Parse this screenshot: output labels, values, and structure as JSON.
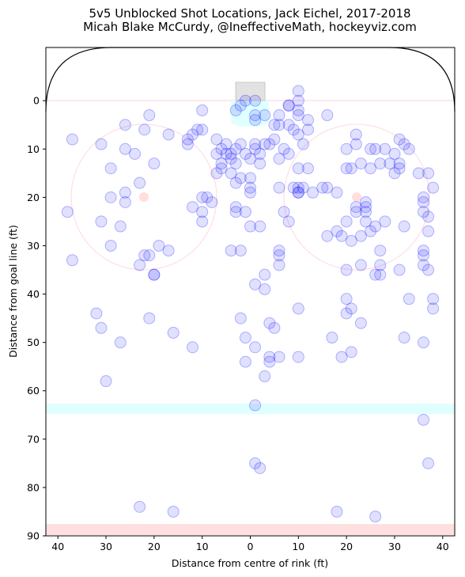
{
  "chart_data": {
    "type": "scatter",
    "title": [
      "5v5 Unblocked Shot Locations, Jack Eichel, 2017-2018",
      "Micah Blake McCurdy, @IneffectiveMath, hockeyviz.com"
    ],
    "xlabel": "Distance from centre of rink (ft)",
    "ylabel": "Distance from goal line (ft)",
    "xlim": [
      42.5,
      -42.5
    ],
    "ylim": [
      90,
      -11
    ],
    "x_ticks": [
      40,
      30,
      20,
      10,
      0,
      10,
      20,
      30,
      40
    ],
    "y_ticks": [
      0,
      10,
      20,
      30,
      40,
      50,
      60,
      70,
      80,
      90
    ],
    "grid": false,
    "marker_color": "#0000ff",
    "marker_alpha": 0.12,
    "points": [
      [
        10,
        2
      ],
      [
        -1,
        0
      ],
      [
        1,
        0
      ],
      [
        2,
        1
      ],
      [
        3,
        2
      ],
      [
        -3,
        3
      ],
      [
        -5,
        5
      ],
      [
        -1,
        3
      ],
      [
        37,
        8
      ],
      [
        31,
        9
      ],
      [
        26,
        5
      ],
      [
        22,
        6
      ],
      [
        21,
        3
      ],
      [
        17,
        7
      ],
      [
        13,
        8
      ],
      [
        12,
        7
      ],
      [
        11,
        6
      ],
      [
        10,
        6
      ],
      [
        13,
        9
      ],
      [
        -1,
        4
      ],
      [
        24,
        11
      ],
      [
        26,
        10
      ],
      [
        29,
        14
      ],
      [
        20,
        13
      ],
      [
        23,
        17
      ],
      [
        26,
        19
      ],
      [
        26,
        21
      ],
      [
        29,
        20
      ],
      [
        27,
        26
      ],
      [
        31,
        25
      ],
      [
        29,
        30
      ],
      [
        38,
        23
      ],
      [
        37,
        33
      ],
      [
        22,
        32
      ],
      [
        21,
        32
      ],
      [
        19,
        30
      ],
      [
        17,
        31
      ],
      [
        20,
        36
      ],
      [
        20,
        36
      ],
      [
        23,
        34
      ],
      [
        7,
        8
      ],
      [
        5,
        9
      ],
      [
        6,
        10
      ],
      [
        5,
        11
      ],
      [
        4,
        11
      ],
      [
        3,
        10
      ],
      [
        2,
        9
      ],
      [
        7,
        11
      ],
      [
        4,
        12
      ],
      [
        3,
        13
      ],
      [
        6,
        13
      ],
      [
        6,
        14
      ],
      [
        7,
        15
      ],
      [
        4,
        15
      ],
      [
        2,
        16
      ],
      [
        3,
        17
      ],
      [
        1,
        11
      ],
      [
        0,
        12
      ],
      [
        -1,
        10
      ],
      [
        -2,
        11
      ],
      [
        -3,
        9
      ],
      [
        -1,
        9
      ],
      [
        -2,
        13
      ],
      [
        0,
        16
      ],
      [
        0,
        18
      ],
      [
        0,
        19
      ],
      [
        12,
        22
      ],
      [
        10,
        23
      ],
      [
        10,
        25
      ],
      [
        9,
        20
      ],
      [
        8,
        21
      ],
      [
        10,
        20
      ],
      [
        3,
        22
      ],
      [
        3,
        23
      ],
      [
        1,
        23
      ],
      [
        4,
        31
      ],
      [
        2,
        31
      ],
      [
        0,
        26
      ],
      [
        -2,
        26
      ],
      [
        -6,
        5
      ],
      [
        -8,
        5
      ],
      [
        -9,
        6
      ],
      [
        -10,
        7
      ],
      [
        -11,
        9
      ],
      [
        -12,
        14
      ],
      [
        -10,
        14
      ],
      [
        -9,
        18
      ],
      [
        -7,
        23
      ],
      [
        -8,
        25
      ],
      [
        -13,
        19
      ],
      [
        -11,
        18
      ],
      [
        -10,
        19
      ],
      [
        -8,
        11
      ],
      [
        -6,
        12
      ],
      [
        -7,
        10
      ],
      [
        -5,
        8
      ],
      [
        -4,
        9
      ],
      [
        -6,
        3
      ],
      [
        -10,
        2
      ],
      [
        -8,
        1
      ],
      [
        -10,
        0
      ],
      [
        -10,
        -2
      ],
      [
        -12,
        4
      ],
      [
        -12,
        6
      ],
      [
        -10,
        3
      ],
      [
        -8,
        1
      ],
      [
        -16,
        3
      ],
      [
        -20,
        10
      ],
      [
        -21,
        14
      ],
      [
        -20,
        14
      ],
      [
        -22,
        7
      ],
      [
        -23,
        13
      ],
      [
        -22,
        23
      ],
      [
        -22,
        22
      ],
      [
        -24,
        22
      ],
      [
        -24,
        21
      ],
      [
        -24,
        23
      ],
      [
        -26,
        26
      ],
      [
        -24,
        25
      ],
      [
        -26,
        10
      ],
      [
        -27,
        13
      ],
      [
        -30,
        15
      ],
      [
        -31,
        14
      ],
      [
        -33,
        10
      ],
      [
        -31,
        8
      ],
      [
        -35,
        15
      ],
      [
        -36,
        21
      ],
      [
        -36,
        23
      ],
      [
        -36,
        31
      ],
      [
        -36,
        32
      ],
      [
        -36,
        34
      ],
      [
        -37,
        27
      ],
      [
        -37,
        24
      ],
      [
        -37,
        15
      ],
      [
        -36,
        20
      ],
      [
        -37,
        35
      ],
      [
        -38,
        18
      ],
      [
        -15,
        18
      ],
      [
        -16,
        18
      ],
      [
        -18,
        19
      ],
      [
        -16,
        28
      ],
      [
        -18,
        27
      ],
      [
        -19,
        28
      ],
      [
        -20,
        25
      ],
      [
        -21,
        29
      ],
      [
        -23,
        28
      ],
      [
        -25,
        27
      ],
      [
        -23,
        34
      ],
      [
        -20,
        35
      ],
      [
        -26,
        36
      ],
      [
        -27,
        36
      ],
      [
        -27,
        34
      ],
      [
        -27,
        31
      ],
      [
        -32,
        26
      ],
      [
        -31,
        35
      ],
      [
        -28,
        10
      ],
      [
        -29,
        13
      ],
      [
        -30,
        11
      ],
      [
        -31,
        13
      ],
      [
        -32,
        9
      ],
      [
        -22,
        9
      ],
      [
        -25,
        10
      ],
      [
        -25,
        14
      ],
      [
        -28,
        25
      ],
      [
        -33,
        41
      ],
      [
        -38,
        43
      ],
      [
        -38,
        41
      ],
      [
        -20,
        44
      ],
      [
        -21,
        43
      ],
      [
        -20,
        41
      ],
      [
        -23,
        46
      ],
      [
        -21,
        52
      ],
      [
        -17,
        49
      ],
      [
        -19,
        53
      ],
      [
        -10,
        43
      ],
      [
        -10,
        53
      ],
      [
        -6,
        53
      ],
      [
        -5,
        47
      ],
      [
        -4,
        46
      ],
      [
        -3,
        39
      ],
      [
        -3,
        36
      ],
      [
        -6,
        34
      ],
      [
        -6,
        31
      ],
      [
        -6,
        32
      ],
      [
        -6,
        18
      ],
      [
        -10,
        18
      ],
      [
        -10,
        19
      ],
      [
        32,
        44
      ],
      [
        31,
        47
      ],
      [
        27,
        50
      ],
      [
        30,
        58
      ],
      [
        21,
        45
      ],
      [
        16,
        48
      ],
      [
        12,
        51
      ],
      [
        2,
        45
      ],
      [
        1,
        49
      ],
      [
        1,
        54
      ],
      [
        -1,
        38
      ],
      [
        -1,
        51
      ],
      [
        -3,
        57
      ],
      [
        -4,
        54
      ],
      [
        -4,
        53
      ],
      [
        -1,
        63
      ],
      [
        -1,
        75
      ],
      [
        -2,
        76
      ],
      [
        23,
        84
      ],
      [
        16,
        85
      ],
      [
        -18,
        85
      ],
      [
        -26,
        86
      ],
      [
        -36,
        66
      ],
      [
        -37,
        75
      ],
      [
        -36,
        50
      ],
      [
        -32,
        49
      ]
    ]
  }
}
